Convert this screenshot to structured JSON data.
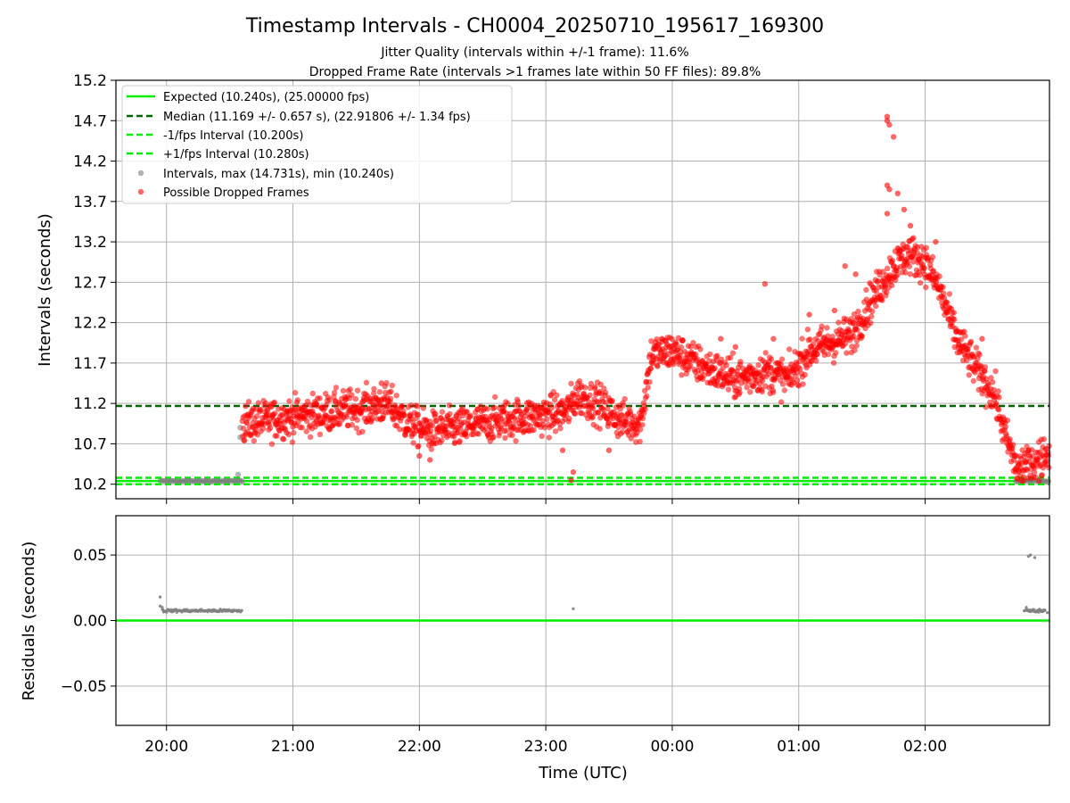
{
  "figure": {
    "title": "Timestamp Intervals - CH0004_20250710_195617_169300",
    "subtitle_1": "Jitter Quality (intervals within +/-1 frame): 11.6%",
    "subtitle_2": "Dropped Frame Rate (intervals >1 frames late within 50 FF files): 89.8%",
    "xlabel": "Time (UTC)"
  },
  "colors": {
    "expected": "#00ee00",
    "median": "#006400",
    "bounds": "#00ee00",
    "intervals": "#808080",
    "dropped": "#ff0000",
    "grid": "#b0b0b0",
    "residual_zero": "#00ee00"
  },
  "chart_data": [
    {
      "type": "scatter",
      "panel": "intervals",
      "ylabel": "Intervals (seconds)",
      "xlim": [
        "19:36",
        "02:59"
      ],
      "ylim": [
        10.02,
        15.2
      ],
      "x_ticks": [
        "20:00",
        "21:00",
        "22:00",
        "23:00",
        "00:00",
        "01:00",
        "02:00"
      ],
      "y_ticks": [
        "10.2",
        "10.7",
        "11.2",
        "11.7",
        "12.2",
        "12.7",
        "13.2",
        "13.7",
        "14.2",
        "14.7",
        "15.2"
      ],
      "grid": true,
      "legend_position": "top-left",
      "legend": [
        "Expected (10.240s), (25.00000 fps)",
        "Median (11.169 +/- 0.657 s), (22.91806 +/- 1.34 fps)",
        "-1/fps Interval (10.200s)",
        "+1/fps Interval (10.280s)",
        "Intervals, max (14.731s), min (10.240s)",
        "Possible Dropped Frames"
      ],
      "reference_lines": {
        "expected": 10.24,
        "median": 11.169,
        "minus_one_frame": 10.2,
        "plus_one_frame": 10.28
      },
      "series": [
        {
          "name": "Intervals, max (14.731s), min (10.240s)",
          "description_points": "on-time intervals",
          "segments": [
            {
              "from": "19:57",
              "to": "20:36",
              "value": 10.24
            },
            {
              "from": "02:43",
              "to": "02:59",
              "value": 10.24
            }
          ],
          "extra_points": [
            [
              "20:34",
              10.32
            ],
            [
              "20:35",
              10.9
            ],
            [
              "20:35",
              10.78
            ]
          ]
        },
        {
          "name": "Possible Dropped Frames",
          "trend": [
            [
              "20:36",
              10.95
            ],
            [
              "20:50",
              11.0
            ],
            [
              "21:05",
              11.05
            ],
            [
              "21:20",
              11.1
            ],
            [
              "21:35",
              11.15
            ],
            [
              "21:45",
              11.2
            ],
            [
              "21:55",
              10.95
            ],
            [
              "22:05",
              10.85
            ],
            [
              "22:20",
              10.9
            ],
            [
              "22:40",
              11.0
            ],
            [
              "23:00",
              11.05
            ],
            [
              "23:10",
              11.1
            ],
            [
              "23:15",
              11.3
            ],
            [
              "23:25",
              11.2
            ],
            [
              "23:35",
              11.0
            ],
            [
              "23:45",
              10.95
            ],
            [
              "23:50",
              11.8
            ],
            [
              "00:00",
              11.85
            ],
            [
              "00:15",
              11.65
            ],
            [
              "00:30",
              11.5
            ],
            [
              "00:45",
              11.6
            ],
            [
              "00:55",
              11.5
            ],
            [
              "01:05",
              11.85
            ],
            [
              "01:15",
              11.95
            ],
            [
              "01:25",
              12.05
            ],
            [
              "01:35",
              12.5
            ],
            [
              "01:45",
              12.9
            ],
            [
              "01:52",
              13.05
            ],
            [
              "02:00",
              12.95
            ],
            [
              "02:07",
              12.6
            ],
            [
              "02:15",
              12.0
            ],
            [
              "02:25",
              11.6
            ],
            [
              "02:33",
              11.3
            ],
            [
              "02:38",
              10.8
            ],
            [
              "02:43",
              10.45
            ],
            [
              "02:50",
              10.5
            ],
            [
              "02:59",
              10.6
            ]
          ],
          "spread": 0.12,
          "outliers": [
            [
              "21:42",
              11.45
            ],
            [
              "22:00",
              10.55
            ],
            [
              "22:05",
              10.5
            ],
            [
              "23:08",
              10.62
            ],
            [
              "23:12",
              10.25
            ],
            [
              "23:13",
              10.35
            ],
            [
              "23:30",
              10.62
            ],
            [
              "00:23",
              12.0
            ],
            [
              "00:30",
              11.9
            ],
            [
              "00:44",
              12.68
            ],
            [
              "00:48",
              12.0
            ],
            [
              "01:05",
              12.3
            ],
            [
              "01:17",
              12.35
            ],
            [
              "01:22",
              12.9
            ],
            [
              "01:27",
              12.8
            ],
            [
              "01:42",
              14.7
            ],
            [
              "01:42",
              14.75
            ],
            [
              "01:43",
              14.65
            ],
            [
              "01:45",
              14.5
            ],
            [
              "01:42",
              13.9
            ],
            [
              "01:43",
              13.85
            ],
            [
              "01:42",
              13.55
            ],
            [
              "01:50",
              13.6
            ],
            [
              "01:47",
              13.8
            ],
            [
              "01:53",
              13.4
            ],
            [
              "02:05",
              13.2
            ],
            [
              "02:27",
              12.0
            ]
          ]
        }
      ]
    },
    {
      "type": "scatter",
      "panel": "residuals",
      "ylabel": "Residuals (seconds)",
      "xlim": [
        "19:36",
        "02:59"
      ],
      "ylim": [
        -0.08,
        0.08
      ],
      "x_ticks": [
        "20:00",
        "21:00",
        "22:00",
        "23:00",
        "00:00",
        "01:00",
        "02:00"
      ],
      "y_ticks": [
        "−0.05",
        "0.00",
        "0.05"
      ],
      "grid": true,
      "zero_line": 0.0,
      "series": [
        {
          "name": "residuals",
          "segments": [
            {
              "from": "19:58",
              "to": "20:36",
              "value": 0.0075
            },
            {
              "from": "02:47",
              "to": "02:57",
              "value": 0.0075
            }
          ],
          "points": [
            [
              "19:57",
              0.018
            ],
            [
              "19:57",
              0.011
            ],
            [
              "19:58",
              0.01
            ],
            [
              "23:13",
              0.009
            ],
            [
              "02:49",
              0.049
            ],
            [
              "02:50",
              0.05
            ],
            [
              "02:52",
              0.048
            ],
            [
              "02:48",
              0.01
            ],
            [
              "02:58",
              0.006
            ]
          ]
        }
      ]
    }
  ]
}
